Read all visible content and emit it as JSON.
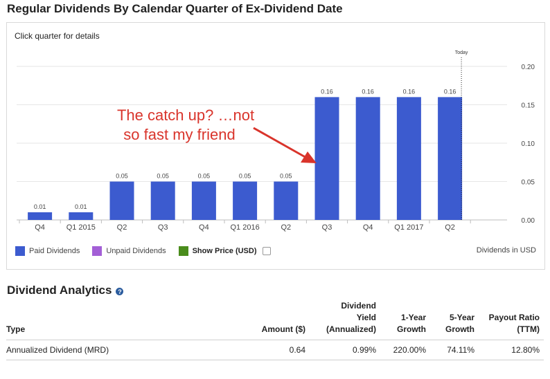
{
  "page_title": "Regular Dividends By Calendar Quarter of Ex-Dividend Date",
  "chart_hint": "Click quarter for details",
  "chart_data": {
    "type": "bar",
    "categories": [
      "Q4",
      "Q1 2015",
      "Q2",
      "Q3",
      "Q4",
      "Q1 2016",
      "Q2",
      "Q3",
      "Q4",
      "Q1 2017",
      "Q2"
    ],
    "values": [
      0.01,
      0.01,
      0.05,
      0.05,
      0.05,
      0.05,
      0.05,
      0.16,
      0.16,
      0.16,
      0.16
    ],
    "value_labels": [
      "0.01",
      "0.01",
      "0.05",
      "0.05",
      "0.05",
      "0.05",
      "0.05",
      "0.16",
      "0.16",
      "0.16",
      "0.16"
    ],
    "ylim": [
      0,
      0.2
    ],
    "yticks": [
      "0.00",
      "0.05",
      "0.10",
      "0.15",
      "0.20"
    ],
    "ytick_values": [
      0,
      0.05,
      0.1,
      0.15,
      0.2
    ],
    "y_axis_side": "right",
    "grid": true,
    "bar_color": "#3c5bcf",
    "today_marker": {
      "label": "Today",
      "after_category_index": 10
    },
    "annotation": {
      "lines": [
        "The catch up? …not",
        "so fast my friend"
      ],
      "color": "#d9342b"
    }
  },
  "legend": {
    "items": [
      {
        "label": "Paid Dividends",
        "color": "#3c5bcf"
      },
      {
        "label": "Unpaid Dividends",
        "color": "#a35fd6"
      },
      {
        "label": "Show Price (USD)",
        "color": "#4a8c1c"
      }
    ],
    "units_note": "Dividends in USD"
  },
  "analytics": {
    "title": "Dividend Analytics",
    "help_icon": "question-circle-icon",
    "headers": {
      "type": "Type",
      "amount": "Amount ($)",
      "yield": [
        "Dividend",
        "Yield",
        "(Annualized)"
      ],
      "growth1": [
        "1-Year",
        "Growth"
      ],
      "growth5": [
        "5-Year",
        "Growth"
      ],
      "payout": [
        "Payout Ratio",
        "(TTM)"
      ]
    },
    "rows": [
      {
        "type": "Annualized Dividend (MRD)",
        "amount": "0.64",
        "yield": "0.99%",
        "growth1": "220.00%",
        "growth5": "74.11%",
        "payout": "12.80%"
      }
    ]
  }
}
